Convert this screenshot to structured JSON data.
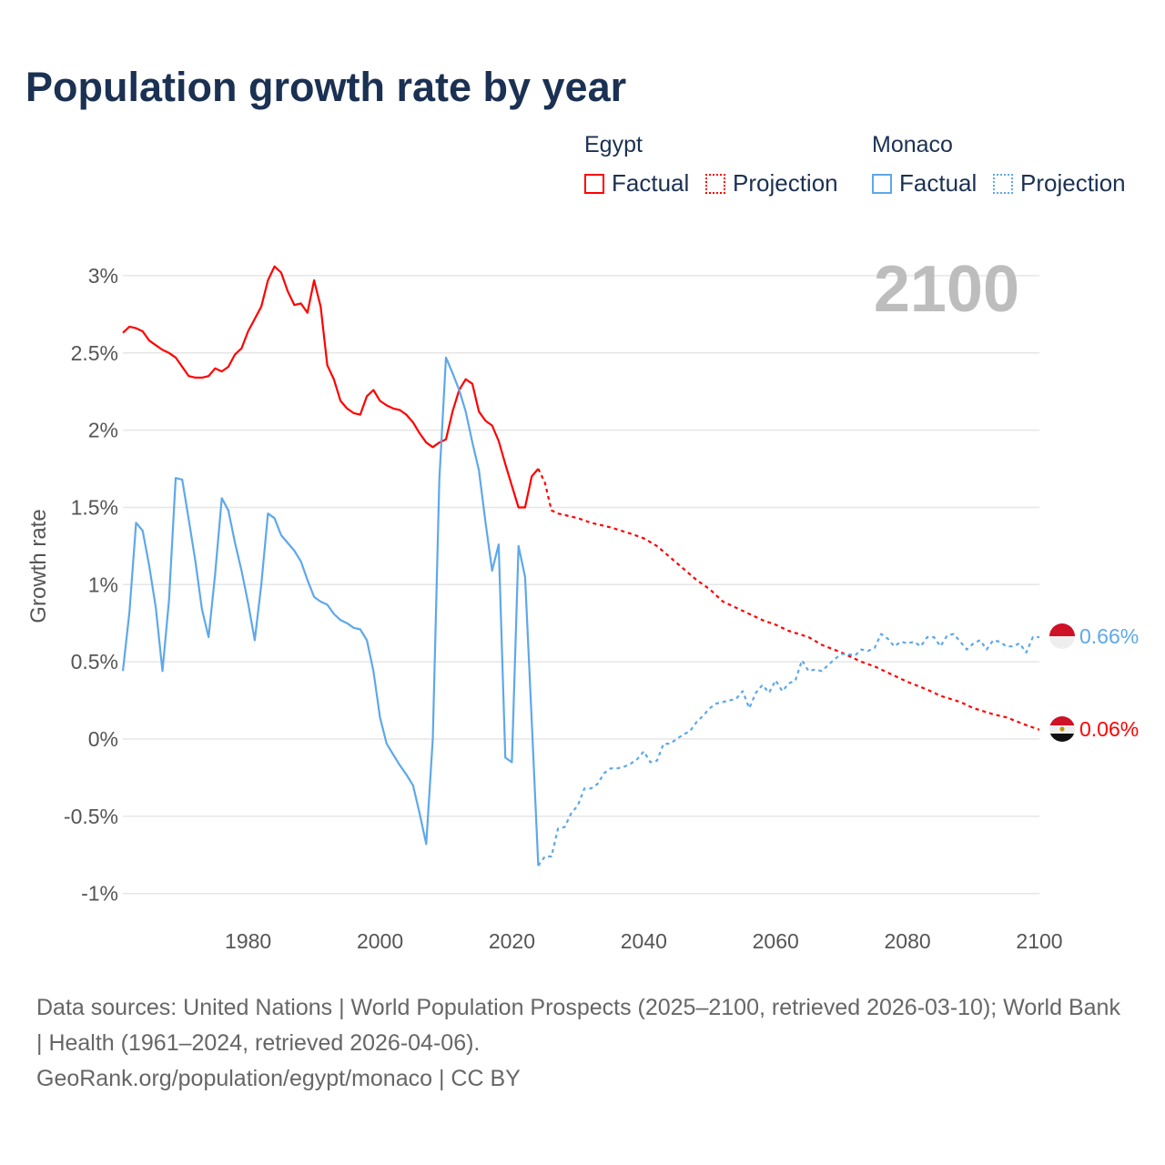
{
  "title": "Population growth rate by year",
  "legend": {
    "groups": [
      {
        "name": "Egypt",
        "factual": "Factual",
        "projection": "Projection",
        "color": "#ff0000"
      },
      {
        "name": "Monaco",
        "factual": "Factual",
        "projection": "Projection",
        "color": "#5ea8ea"
      }
    ]
  },
  "current_year_label": "2100",
  "end_labels": {
    "monaco": "0.66%",
    "egypt": "0.06%"
  },
  "footer": {
    "sources": "Data sources: United Nations | World Population Prospects (2025–2100, retrieved 2026-03-10); World Bank | Health (1961–2024, retrieved 2026-04-06).",
    "credit": "GeoRank.org/population/egypt/monaco | CC BY"
  },
  "chart_data": {
    "type": "line",
    "title": "Population growth rate by year",
    "xlabel": "",
    "ylabel": "Growth rate",
    "xlim": [
      1961,
      2100
    ],
    "ylim": [
      -1.2,
      3.1
    ],
    "x_ticks": [
      1980,
      2000,
      2020,
      2040,
      2060,
      2080,
      2100
    ],
    "y_ticks": [
      {
        "v": 3,
        "label": "3%"
      },
      {
        "v": 2.5,
        "label": "2.5%"
      },
      {
        "v": 2,
        "label": "2%"
      },
      {
        "v": 1.5,
        "label": "1.5%"
      },
      {
        "v": 1,
        "label": "1%"
      },
      {
        "v": 0.5,
        "label": "0.5%"
      },
      {
        "v": 0,
        "label": "0%"
      },
      {
        "v": -0.5,
        "label": "-0.5%"
      },
      {
        "v": -1,
        "label": "-1%"
      }
    ],
    "grid": true,
    "series": [
      {
        "name": "Egypt Factual",
        "color": "#ff0000",
        "dashed": false,
        "start_year": 1961,
        "values": [
          2.63,
          2.67,
          2.66,
          2.64,
          2.58,
          2.55,
          2.52,
          2.5,
          2.47,
          2.41,
          2.35,
          2.34,
          2.34,
          2.35,
          2.4,
          2.38,
          2.41,
          2.49,
          2.53,
          2.64,
          2.72,
          2.8,
          2.97,
          3.06,
          3.02,
          2.9,
          2.81,
          2.82,
          2.76,
          2.97,
          2.8,
          2.42,
          2.33,
          2.19,
          2.14,
          2.11,
          2.1,
          2.22,
          2.26,
          2.19,
          2.16,
          2.14,
          2.13,
          2.1,
          2.05,
          1.98,
          1.92,
          1.89,
          1.92,
          1.94,
          2.12,
          2.26,
          2.33,
          2.3,
          2.12,
          2.06,
          2.03,
          1.93,
          1.78,
          1.64,
          1.5,
          1.5,
          1.7,
          1.75
        ]
      },
      {
        "name": "Egypt Projection",
        "color": "#ff0000",
        "dashed": true,
        "x": [
          2024,
          2025,
          2026,
          2027,
          2030,
          2032,
          2035,
          2038,
          2040,
          2042,
          2045,
          2048,
          2050,
          2052,
          2055,
          2058,
          2060,
          2062,
          2065,
          2067,
          2070,
          2073,
          2075,
          2078,
          2080,
          2083,
          2085,
          2088,
          2090,
          2093,
          2095,
          2098,
          2100
        ],
        "values": [
          1.75,
          1.66,
          1.48,
          1.46,
          1.43,
          1.4,
          1.37,
          1.33,
          1.3,
          1.25,
          1.14,
          1.03,
          0.97,
          0.89,
          0.83,
          0.77,
          0.74,
          0.7,
          0.66,
          0.61,
          0.56,
          0.5,
          0.47,
          0.41,
          0.37,
          0.32,
          0.28,
          0.24,
          0.2,
          0.16,
          0.14,
          0.09,
          0.06
        ]
      },
      {
        "name": "Monaco Factual",
        "color": "#5ea8ea",
        "dashed": false,
        "start_year": 1961,
        "values": [
          0.44,
          0.82,
          1.4,
          1.35,
          1.12,
          0.85,
          0.44,
          0.9,
          1.69,
          1.68,
          1.42,
          1.15,
          0.84,
          0.66,
          1.07,
          1.56,
          1.48,
          1.27,
          1.09,
          0.88,
          0.64,
          1.0,
          1.46,
          1.43,
          1.32,
          1.27,
          1.22,
          1.15,
          1.03,
          0.92,
          0.89,
          0.87,
          0.81,
          0.77,
          0.75,
          0.72,
          0.71,
          0.64,
          0.44,
          0.14,
          -0.03,
          -0.1,
          -0.17,
          -0.23,
          -0.3,
          -0.48,
          -0.68,
          0.0,
          1.68,
          2.47,
          2.37,
          2.26,
          2.12,
          1.92,
          1.74,
          1.4,
          1.09,
          1.26,
          -0.12,
          -0.15,
          1.25,
          1.05,
          0.12,
          -0.82
        ]
      },
      {
        "name": "Monaco Projection",
        "color": "#5ea8ea",
        "dashed": true,
        "start_year": 2024,
        "values": [
          -0.82,
          -0.76,
          -0.76,
          -0.58,
          -0.57,
          -0.48,
          -0.43,
          -0.32,
          -0.32,
          -0.29,
          -0.22,
          -0.19,
          -0.19,
          -0.18,
          -0.16,
          -0.13,
          -0.08,
          -0.15,
          -0.14,
          -0.03,
          -0.03,
          0.0,
          0.03,
          0.05,
          0.11,
          0.15,
          0.2,
          0.23,
          0.24,
          0.25,
          0.26,
          0.31,
          0.2,
          0.3,
          0.35,
          0.3,
          0.38,
          0.31,
          0.36,
          0.38,
          0.51,
          0.44,
          0.45,
          0.44,
          0.48,
          0.52,
          0.55,
          0.55,
          0.54,
          0.58,
          0.57,
          0.59,
          0.68,
          0.65,
          0.6,
          0.63,
          0.62,
          0.63,
          0.6,
          0.66,
          0.66,
          0.6,
          0.67,
          0.68,
          0.63,
          0.58,
          0.62,
          0.64,
          0.58,
          0.64,
          0.63,
          0.6,
          0.6,
          0.62,
          0.56,
          0.66,
          0.66
        ]
      }
    ]
  }
}
